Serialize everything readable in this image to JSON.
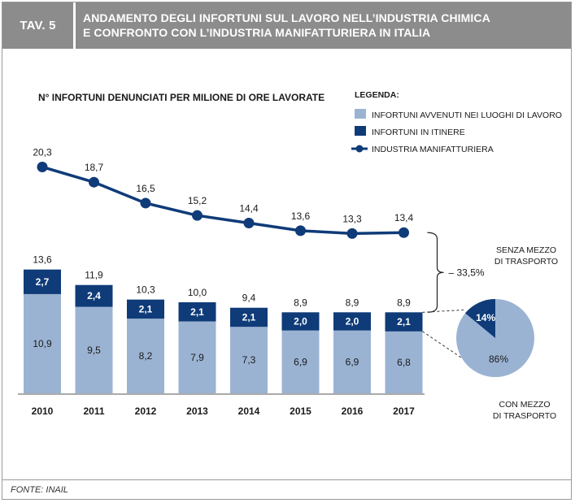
{
  "header": {
    "tag": "TAV. 5",
    "title_line1": "ANDAMENTO DEGLI INFORTUNI SUL LAVORO NELL’INDUSTRIA CHIMICA",
    "title_line2": "E CONFRONTO CON L’INDUSTRIA MANIFATTURIERA IN ITALIA"
  },
  "source": "FONTE: INAIL",
  "colors": {
    "light": "#9bb3d3",
    "dark": "#0f3b78",
    "line": "#0f3b78",
    "header": "#8c8c8c"
  },
  "chart_data": [
    {
      "type": "bar",
      "stacked": true,
      "title": "N° INFORTUNI DENUNCIATI PER MILIONE DI ORE LAVORATE",
      "categories": [
        "2010",
        "2011",
        "2012",
        "2013",
        "2014",
        "2015",
        "2016",
        "2017"
      ],
      "series": [
        {
          "name": "INFORTUNI AVVENUTI NEI LUOGHI DI LAVORO",
          "values": [
            10.9,
            9.5,
            8.2,
            7.9,
            7.3,
            6.9,
            6.9,
            6.8
          ],
          "labels": [
            "10,9",
            "9,5",
            "8,2",
            "7,9",
            "7,3",
            "6,9",
            "6,9",
            "6,8"
          ]
        },
        {
          "name": "INFORTUNI IN ITINERE",
          "values": [
            2.7,
            2.4,
            2.1,
            2.1,
            2.1,
            2.0,
            2.0,
            2.1
          ],
          "labels": [
            "2,7",
            "2,4",
            "2,1",
            "2,1",
            "2,1",
            "2,0",
            "2,0",
            "2,1"
          ]
        }
      ],
      "totals": [
        13.6,
        11.9,
        10.3,
        10.0,
        9.4,
        8.9,
        8.9,
        8.9
      ],
      "total_labels": [
        "13,6",
        "11,9",
        "10,3",
        "10,0",
        "9,4",
        "8,9",
        "8,9",
        "8,9"
      ],
      "line_series": {
        "name": "INDUSTRIA MANIFATTURIERA",
        "values": [
          20.3,
          18.7,
          16.5,
          15.2,
          14.4,
          13.6,
          13.3,
          13.4
        ],
        "labels": [
          "20,3",
          "18,7",
          "16,5",
          "15,2",
          "14,4",
          "13,6",
          "13,3",
          "13,4"
        ]
      },
      "legend_title": "LEGENDA:",
      "legend_position": "top-right",
      "annotation": "– 33,5%"
    },
    {
      "type": "pie",
      "slices": [
        {
          "name": "SENZA MEZZO DI TRASPORTO",
          "line1": "SENZA MEZZO",
          "line2": "DI TRASPORTO",
          "value": 14,
          "label": "14%"
        },
        {
          "name": "CON MEZZO DI TRASPORTO",
          "line1": "CON MEZZO",
          "line2": "DI TRASPORTO",
          "value": 86,
          "label": "86%"
        }
      ]
    }
  ]
}
